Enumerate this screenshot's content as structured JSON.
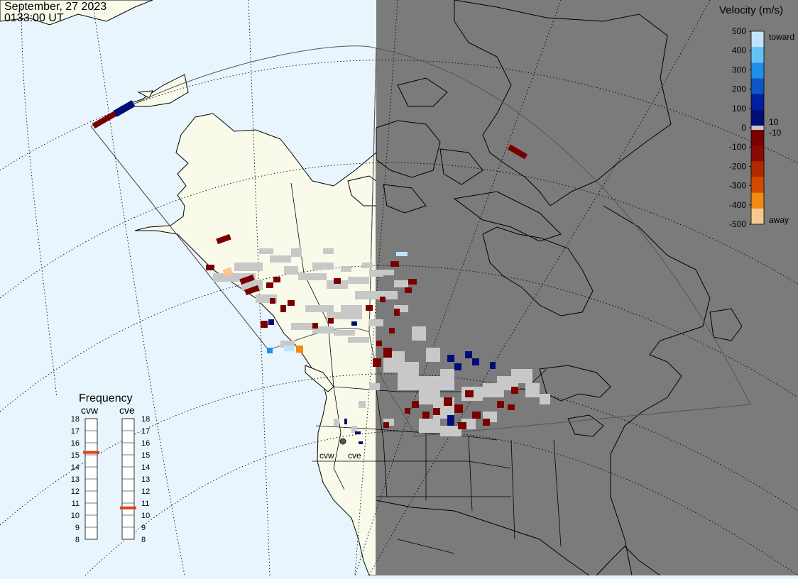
{
  "header": {
    "date": "September, 27 2023",
    "time": "0133:00 UT"
  },
  "colors": {
    "ocean": "#e9f5fd",
    "land_day": "#fafaeb",
    "night": "#7b7b7b",
    "ground_scatter": "#c8c8c8"
  },
  "velocity_scale": {
    "title": "Velocity (m/s)",
    "ticks": [
      "500",
      "400",
      "300",
      "200",
      "100",
      "0",
      "-100",
      "-200",
      "-300",
      "-400",
      "-500"
    ],
    "near_zero_labels": [
      "10",
      "-10"
    ],
    "toward_label": "toward",
    "away_label": "away",
    "toward_colors": [
      "#bfe4f8",
      "#66c2f2",
      "#1e90e8",
      "#1055c6",
      "#001fa0",
      "#000d78"
    ],
    "away_colors": [
      "#7a0000",
      "#8a0a05",
      "#b02a00",
      "#d24a00",
      "#f08a10",
      "#f7c890"
    ]
  },
  "frequency_panel": {
    "title": "Frequency",
    "radars": [
      {
        "name": "cvw",
        "frequency_mhz": 15.2
      },
      {
        "name": "cve",
        "frequency_mhz": 10.6
      }
    ],
    "scale_min": 8,
    "scale_max": 18,
    "labels": [
      "18",
      "17",
      "16",
      "15",
      "14",
      "13",
      "12",
      "11",
      "10",
      "9",
      "8"
    ]
  },
  "radar_sites": [
    {
      "name": "cvw",
      "label": "cvw"
    },
    {
      "name": "cve",
      "label": "cve"
    }
  ]
}
